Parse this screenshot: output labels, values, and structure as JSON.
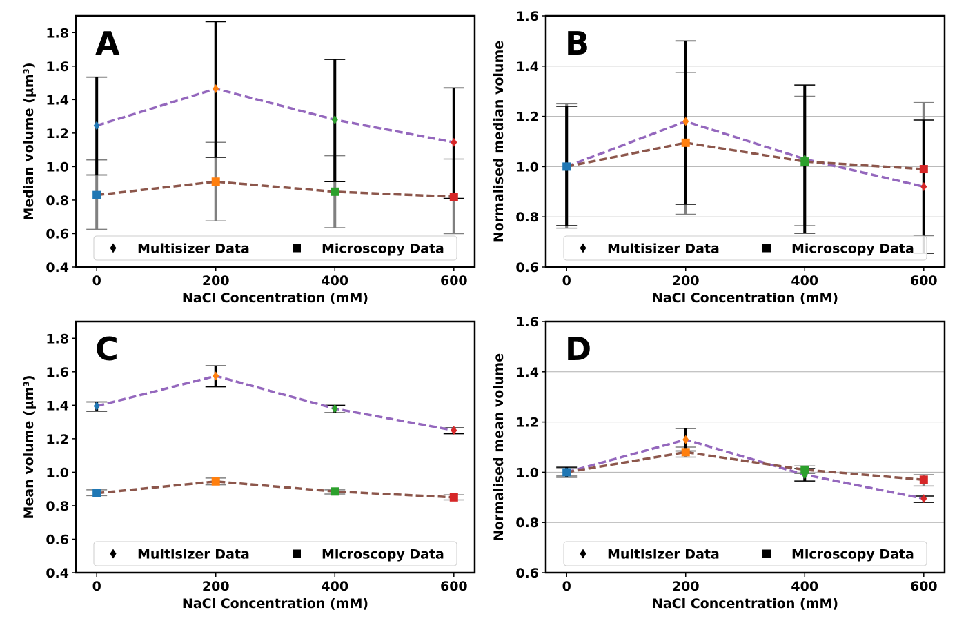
{
  "colors": {
    "points": [
      "#1f77b4",
      "#ff7f0e",
      "#2ca02c",
      "#d62728"
    ],
    "multisizer_line": "#9467bd",
    "microscopy_line": "#8c564b",
    "multisizer_err": "#000000",
    "microscopy_err": "#808080",
    "grid": "#b0b0b0",
    "legend_marker": "#000000"
  },
  "legend": {
    "multisizer_label": "Multisizer Data",
    "microscopy_label": "Microscopy Data",
    "multisizer_marker": "diamond",
    "microscopy_marker": "square",
    "placement": "lower center"
  },
  "chart_data": [
    {
      "panel": "A",
      "type": "line",
      "xlabel": "NaCl Concentration (mM)",
      "ylabel": "Median volume (µm³)",
      "x": [
        0,
        200,
        400,
        600
      ],
      "xticks": [
        "0",
        "200",
        "400",
        "600"
      ],
      "xlim": [
        -35,
        635
      ],
      "ylim": [
        0.4,
        1.9
      ],
      "yticks": [
        "0.4",
        "0.6",
        "0.8",
        "1.0",
        "1.2",
        "1.4",
        "1.6",
        "1.8"
      ],
      "grid": false,
      "series": [
        {
          "name": "Multisizer Data",
          "marker": "diamond",
          "values": [
            1.245,
            1.465,
            1.28,
            1.145
          ],
          "err_low": [
            0.95,
            1.055,
            0.91,
            0.81
          ],
          "err_high": [
            1.535,
            1.865,
            1.64,
            1.47
          ]
        },
        {
          "name": "Microscopy Data",
          "marker": "square",
          "values": [
            0.83,
            0.91,
            0.85,
            0.82
          ],
          "err_low": [
            0.625,
            0.675,
            0.635,
            0.6
          ],
          "err_high": [
            1.04,
            1.145,
            1.065,
            1.045
          ]
        }
      ]
    },
    {
      "panel": "B",
      "type": "line",
      "xlabel": "NaCl Concentration (mM)",
      "ylabel": "Normalised median volume",
      "x": [
        0,
        200,
        400,
        600
      ],
      "xticks": [
        "0",
        "200",
        "400",
        "600"
      ],
      "xlim": [
        -35,
        635
      ],
      "ylim": [
        0.6,
        1.6
      ],
      "yticks": [
        "0.6",
        "0.8",
        "1.0",
        "1.2",
        "1.4",
        "1.6"
      ],
      "grid": true,
      "series": [
        {
          "name": "Multisizer Data",
          "marker": "diamond",
          "values": [
            1.0,
            1.18,
            1.03,
            0.92
          ],
          "err_low": [
            0.765,
            0.85,
            0.735,
            0.655
          ],
          "err_high": [
            1.24,
            1.5,
            1.325,
            1.185
          ]
        },
        {
          "name": "Microscopy Data",
          "marker": "square",
          "values": [
            1.0,
            1.095,
            1.02,
            0.99
          ],
          "err_low": [
            0.755,
            0.81,
            0.765,
            0.725
          ],
          "err_high": [
            1.25,
            1.375,
            1.28,
            1.255
          ]
        }
      ]
    },
    {
      "panel": "C",
      "type": "line",
      "xlabel": "NaCl Concentration (mM)",
      "ylabel": "Mean volume (µm³)",
      "x": [
        0,
        200,
        400,
        600
      ],
      "xticks": [
        "0",
        "200",
        "400",
        "600"
      ],
      "xlim": [
        -35,
        635
      ],
      "ylim": [
        0.4,
        1.9
      ],
      "yticks": [
        "0.4",
        "0.6",
        "0.8",
        "1.0",
        "1.2",
        "1.4",
        "1.6",
        "1.8"
      ],
      "grid": false,
      "series": [
        {
          "name": "Multisizer Data",
          "marker": "diamond",
          "values": [
            1.395,
            1.575,
            1.38,
            1.25
          ],
          "err_low": [
            1.365,
            1.51,
            1.355,
            1.23
          ],
          "err_high": [
            1.42,
            1.635,
            1.4,
            1.265
          ]
        },
        {
          "name": "Microscopy Data",
          "marker": "square",
          "values": [
            0.875,
            0.945,
            0.885,
            0.85
          ],
          "err_low": [
            0.86,
            0.925,
            0.87,
            0.835
          ],
          "err_high": [
            0.895,
            0.965,
            0.895,
            0.865
          ]
        }
      ]
    },
    {
      "panel": "D",
      "type": "line",
      "xlabel": "NaCl Concentration (mM)",
      "ylabel": "Normalised mean volume",
      "x": [
        0,
        200,
        400,
        600
      ],
      "xticks": [
        "0",
        "200",
        "400",
        "600"
      ],
      "xlim": [
        -35,
        635
      ],
      "ylim": [
        0.6,
        1.6
      ],
      "yticks": [
        "0.6",
        "0.8",
        "1.0",
        "1.2",
        "1.4",
        "1.6"
      ],
      "grid": true,
      "series": [
        {
          "name": "Multisizer Data",
          "marker": "diamond",
          "values": [
            1.0,
            1.13,
            0.99,
            0.895
          ],
          "err_low": [
            0.98,
            1.085,
            0.965,
            0.88
          ],
          "err_high": [
            1.02,
            1.175,
            1.015,
            0.905
          ]
        },
        {
          "name": "Microscopy Data",
          "marker": "square",
          "values": [
            1.0,
            1.08,
            1.01,
            0.97
          ],
          "err_low": [
            0.985,
            1.06,
            0.995,
            0.945
          ],
          "err_high": [
            1.015,
            1.1,
            1.025,
            0.99
          ]
        }
      ]
    }
  ]
}
